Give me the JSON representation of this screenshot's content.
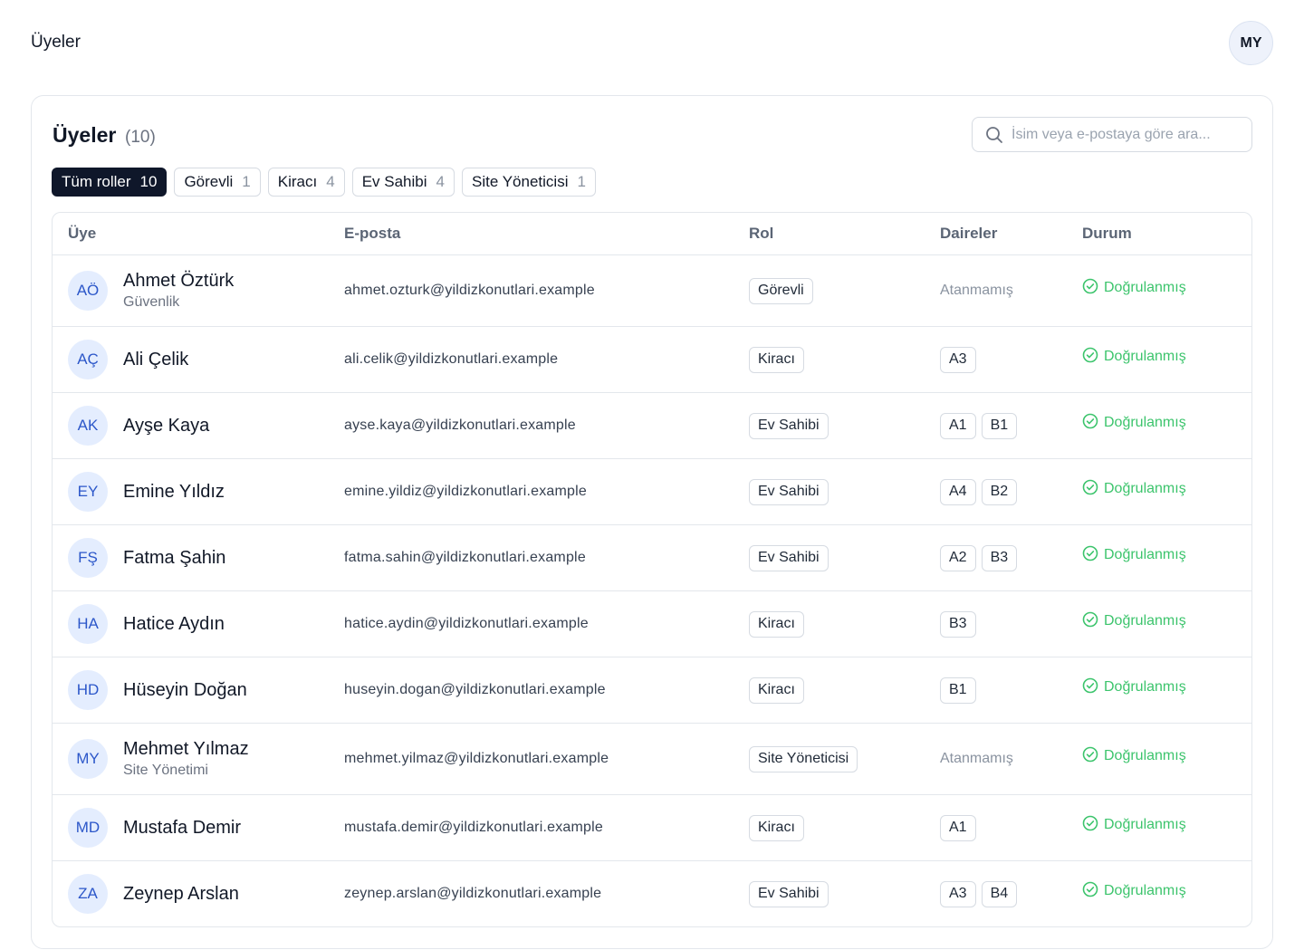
{
  "header": {
    "title": "Üyeler",
    "avatar": "MY"
  },
  "card": {
    "title": "Üyeler",
    "count": "(10)",
    "search_placeholder": "İsim veya e-postaya göre ara..."
  },
  "filters": [
    {
      "label": "Tüm roller",
      "count": 10
    },
    {
      "label": "Görevli",
      "count": 1
    },
    {
      "label": "Kiracı",
      "count": 4
    },
    {
      "label": "Ev Sahibi",
      "count": 4
    },
    {
      "label": "Site Yöneticisi",
      "count": 1
    }
  ],
  "table": {
    "columns": [
      "Üye",
      "E-posta",
      "Rol",
      "Daireler",
      "Durum"
    ],
    "rows": [
      {
        "initials": "AÖ",
        "name": "Ahmet Öztürk",
        "subtitle": "Güvenlik",
        "email": "ahmet.ozturk@yildizkonutlari.example",
        "role": "Görevli",
        "units_note": "Atanmamış",
        "status": "Doğrulanmış"
      },
      {
        "initials": "AÇ",
        "name": "Ali Çelik",
        "email": "ali.celik@yildizkonutlari.example",
        "role": "Kiracı",
        "units": [
          "A3"
        ],
        "status": "Doğrulanmış"
      },
      {
        "initials": "AK",
        "name": "Ayşe Kaya",
        "email": "ayse.kaya@yildizkonutlari.example",
        "role": "Ev Sahibi",
        "units": [
          "A1",
          "B1"
        ],
        "status": "Doğrulanmış"
      },
      {
        "initials": "EY",
        "name": "Emine Yıldız",
        "email": "emine.yildiz@yildizkonutlari.example",
        "role": "Ev Sahibi",
        "units": [
          "A4",
          "B2"
        ],
        "status": "Doğrulanmış"
      },
      {
        "initials": "FŞ",
        "name": "Fatma Şahin",
        "email": "fatma.sahin@yildizkonutlari.example",
        "role": "Ev Sahibi",
        "units": [
          "A2",
          "B3"
        ],
        "status": "Doğrulanmış"
      },
      {
        "initials": "HA",
        "name": "Hatice Aydın",
        "email": "hatice.aydin@yildizkonutlari.example",
        "role": "Kiracı",
        "units": [
          "B3"
        ],
        "status": "Doğrulanmış"
      },
      {
        "initials": "HD",
        "name": "Hüseyin Doğan",
        "email": "huseyin.dogan@yildizkonutlari.example",
        "role": "Kiracı",
        "units": [
          "B1"
        ],
        "status": "Doğrulanmış"
      },
      {
        "initials": "MY",
        "name": "Mehmet Yılmaz",
        "subtitle": "Site Yönetimi",
        "email": "mehmet.yilmaz@yildizkonutlari.example",
        "role": "Site Yöneticisi",
        "units_note": "Atanmamış",
        "status": "Doğrulanmış"
      },
      {
        "initials": "MD",
        "name": "Mustafa Demir",
        "email": "mustafa.demir@yildizkonutlari.example",
        "role": "Kiracı",
        "units": [
          "A1"
        ],
        "status": "Doğrulanmış"
      },
      {
        "initials": "ZA",
        "name": "Zeynep Arslan",
        "email": "zeynep.arslan@yildizkonutlari.example",
        "role": "Ev Sahibi",
        "units": [
          "A3",
          "B4"
        ],
        "status": "Doğrulanmış"
      }
    ]
  }
}
